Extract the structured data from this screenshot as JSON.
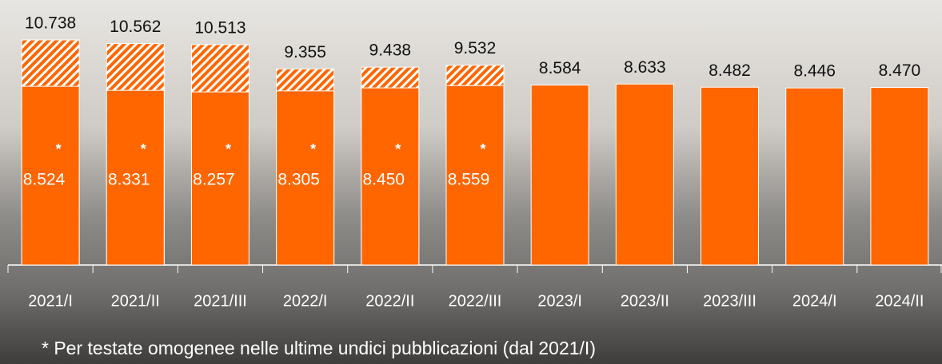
{
  "chart_data": {
    "type": "bar",
    "categories": [
      "2021/I",
      "2021/II",
      "2021/III",
      "2022/I",
      "2022/II",
      "2022/III",
      "2023/I",
      "2023/II",
      "2023/III",
      "2024/I",
      "2024/II"
    ],
    "series": [
      {
        "color": "#ff6600",
        "values": [
          10738,
          10562,
          10513,
          9355,
          9438,
          9532,
          8584,
          8633,
          8482,
          8446,
          8470
        ],
        "value_labels": [
          "10.738",
          "10.562",
          "10.513",
          "9.355",
          "9.438",
          "9.532",
          "8.584",
          "8.633",
          "8.482",
          "8.446",
          "8.470"
        ]
      },
      {
        "color": "#ff6600",
        "values": [
          8524,
          8331,
          8257,
          8305,
          8450,
          8559,
          null,
          null,
          null,
          null,
          null
        ],
        "value_labels": [
          "8.524",
          "8.331",
          "8.257",
          "8.305",
          "8.450",
          "8.559",
          null,
          null,
          null,
          null,
          null
        ],
        "value_notes": [
          "*",
          "*",
          "*",
          "*",
          "*",
          "*",
          null,
          null,
          null,
          null,
          null
        ]
      }
    ],
    "footnote": "* Per testate omogenee nelle ultime undici pubblicazioni (dal 2021/I)"
  }
}
